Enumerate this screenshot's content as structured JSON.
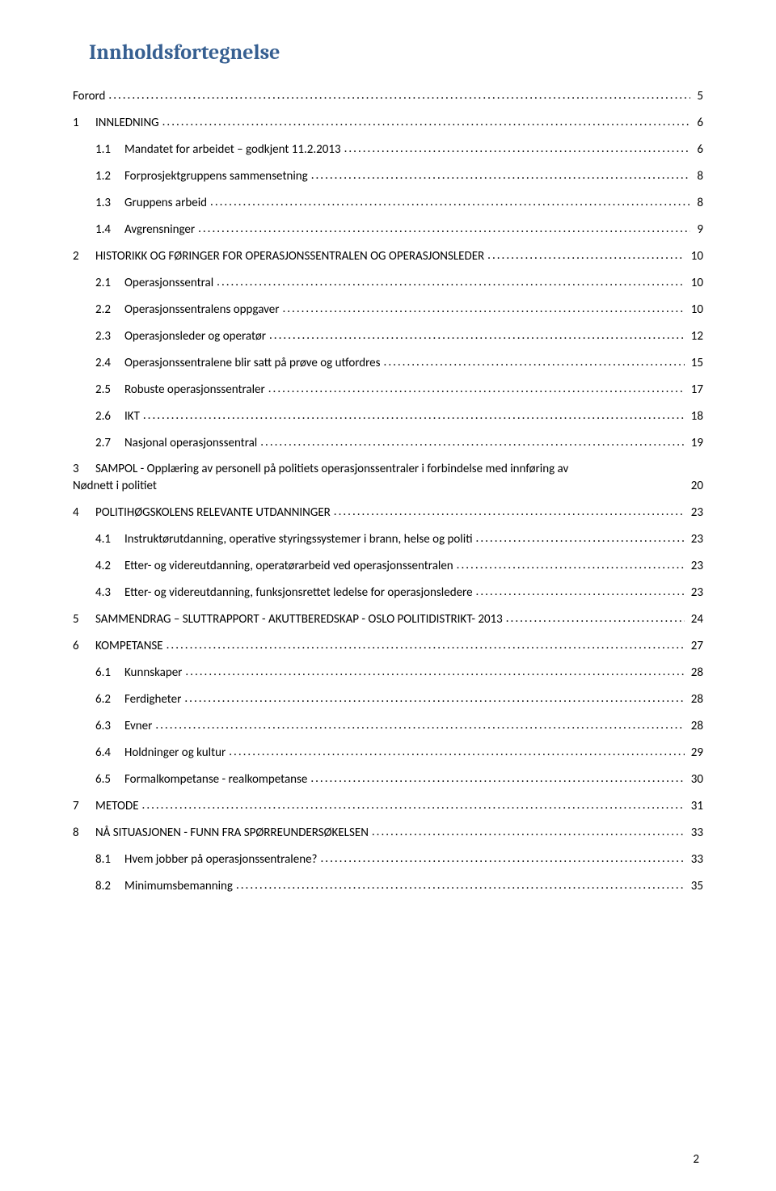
{
  "title": "Innholdsfortegnelse",
  "page_number": "2",
  "entries": [
    {
      "indent": 0,
      "num": "",
      "label": "Forord",
      "page": "5",
      "ml": false
    },
    {
      "indent": 0,
      "num": "1",
      "label": "INNLEDNING",
      "page": "6",
      "ml": false
    },
    {
      "indent": 1,
      "num": "1.1",
      "label": "Mandatet for arbeidet – godkjent 11.2.2013",
      "page": "6",
      "ml": false
    },
    {
      "indent": 1,
      "num": "1.2",
      "label": "Forprosjektgruppens sammensetning",
      "page": "8",
      "ml": false
    },
    {
      "indent": 1,
      "num": "1.3",
      "label": "Gruppens arbeid",
      "page": "8",
      "ml": false
    },
    {
      "indent": 1,
      "num": "1.4",
      "label": "Avgrensninger",
      "page": "9",
      "ml": false
    },
    {
      "indent": 0,
      "num": "2",
      "label": "HISTORIKK OG FØRINGER FOR OPERASJONSSENTRALEN OG OPERASJONSLEDER",
      "page": "10",
      "ml": false
    },
    {
      "indent": 1,
      "num": "2.1",
      "label": "Operasjonssentral",
      "page": "10",
      "ml": false
    },
    {
      "indent": 1,
      "num": "2.2",
      "label": "Operasjonssentralens oppgaver",
      "page": "10",
      "ml": false
    },
    {
      "indent": 1,
      "num": "2.3",
      "label": "Operasjonsleder og operatør",
      "page": "12",
      "ml": false
    },
    {
      "indent": 1,
      "num": "2.4",
      "label": "Operasjonssentralene blir satt på prøve og utfordres",
      "page": "15",
      "ml": false
    },
    {
      "indent": 1,
      "num": "2.5",
      "label": "Robuste operasjonssentraler",
      "page": "17",
      "ml": false
    },
    {
      "indent": 1,
      "num": "2.6",
      "label": "IKT",
      "page": "18",
      "ml": false
    },
    {
      "indent": 1,
      "num": "2.7",
      "label": "Nasjonal operasjonssentral",
      "page": "19",
      "ml": false
    },
    {
      "indent": 0,
      "num": "3",
      "label": "SAMPOL - Opplæring av personell på politiets operasjonssentraler i forbindelse med innføring av",
      "label2": "Nødnett i politiet",
      "page": "20",
      "ml": true
    },
    {
      "indent": 0,
      "num": "4",
      "label": "POLITIHØGSKOLENS RELEVANTE UTDANNINGER",
      "page": "23",
      "ml": false
    },
    {
      "indent": 1,
      "num": "4.1",
      "label": "Instruktørutdanning, operative styringssystemer i brann, helse og politi",
      "page": "23",
      "ml": false
    },
    {
      "indent": 1,
      "num": "4.2",
      "label": "Etter- og videreutdanning, operatørarbeid ved operasjonssentralen",
      "page": "23",
      "ml": false
    },
    {
      "indent": 1,
      "num": "4.3",
      "label": "Etter- og videreutdanning, funksjonsrettet ledelse for operasjonsledere",
      "page": "23",
      "ml": false
    },
    {
      "indent": 0,
      "num": "5",
      "label": "SAMMENDRAG – SLUTTRAPPORT - AKUTTBEREDSKAP - OSLO POLITIDISTRIKT- 2013",
      "page": "24",
      "ml": false
    },
    {
      "indent": 0,
      "num": "6",
      "label": "KOMPETANSE",
      "page": "27",
      "ml": false
    },
    {
      "indent": 1,
      "num": "6.1",
      "label": "Kunnskaper",
      "page": "28",
      "ml": false
    },
    {
      "indent": 1,
      "num": "6.2",
      "label": "Ferdigheter",
      "page": "28",
      "ml": false
    },
    {
      "indent": 1,
      "num": "6.3",
      "label": "Evner",
      "page": "28",
      "ml": false
    },
    {
      "indent": 1,
      "num": "6.4",
      "label": "Holdninger og kultur",
      "page": "29",
      "ml": false
    },
    {
      "indent": 1,
      "num": "6.5",
      "label": "Formalkompetanse - realkompetanse",
      "page": "30",
      "ml": false
    },
    {
      "indent": 0,
      "num": "7",
      "label": "METODE",
      "page": "31",
      "ml": false
    },
    {
      "indent": 0,
      "num": "8",
      "label": "NÅ SITUASJONEN - FUNN FRA SPØRREUNDERSØKELSEN",
      "page": "33",
      "ml": false
    },
    {
      "indent": 1,
      "num": "8.1",
      "label": "Hvem jobber på operasjonssentralene?",
      "page": "33",
      "ml": false
    },
    {
      "indent": 1,
      "num": "8.2",
      "label": "Minimumsbemanning",
      "page": "35",
      "ml": false
    }
  ]
}
